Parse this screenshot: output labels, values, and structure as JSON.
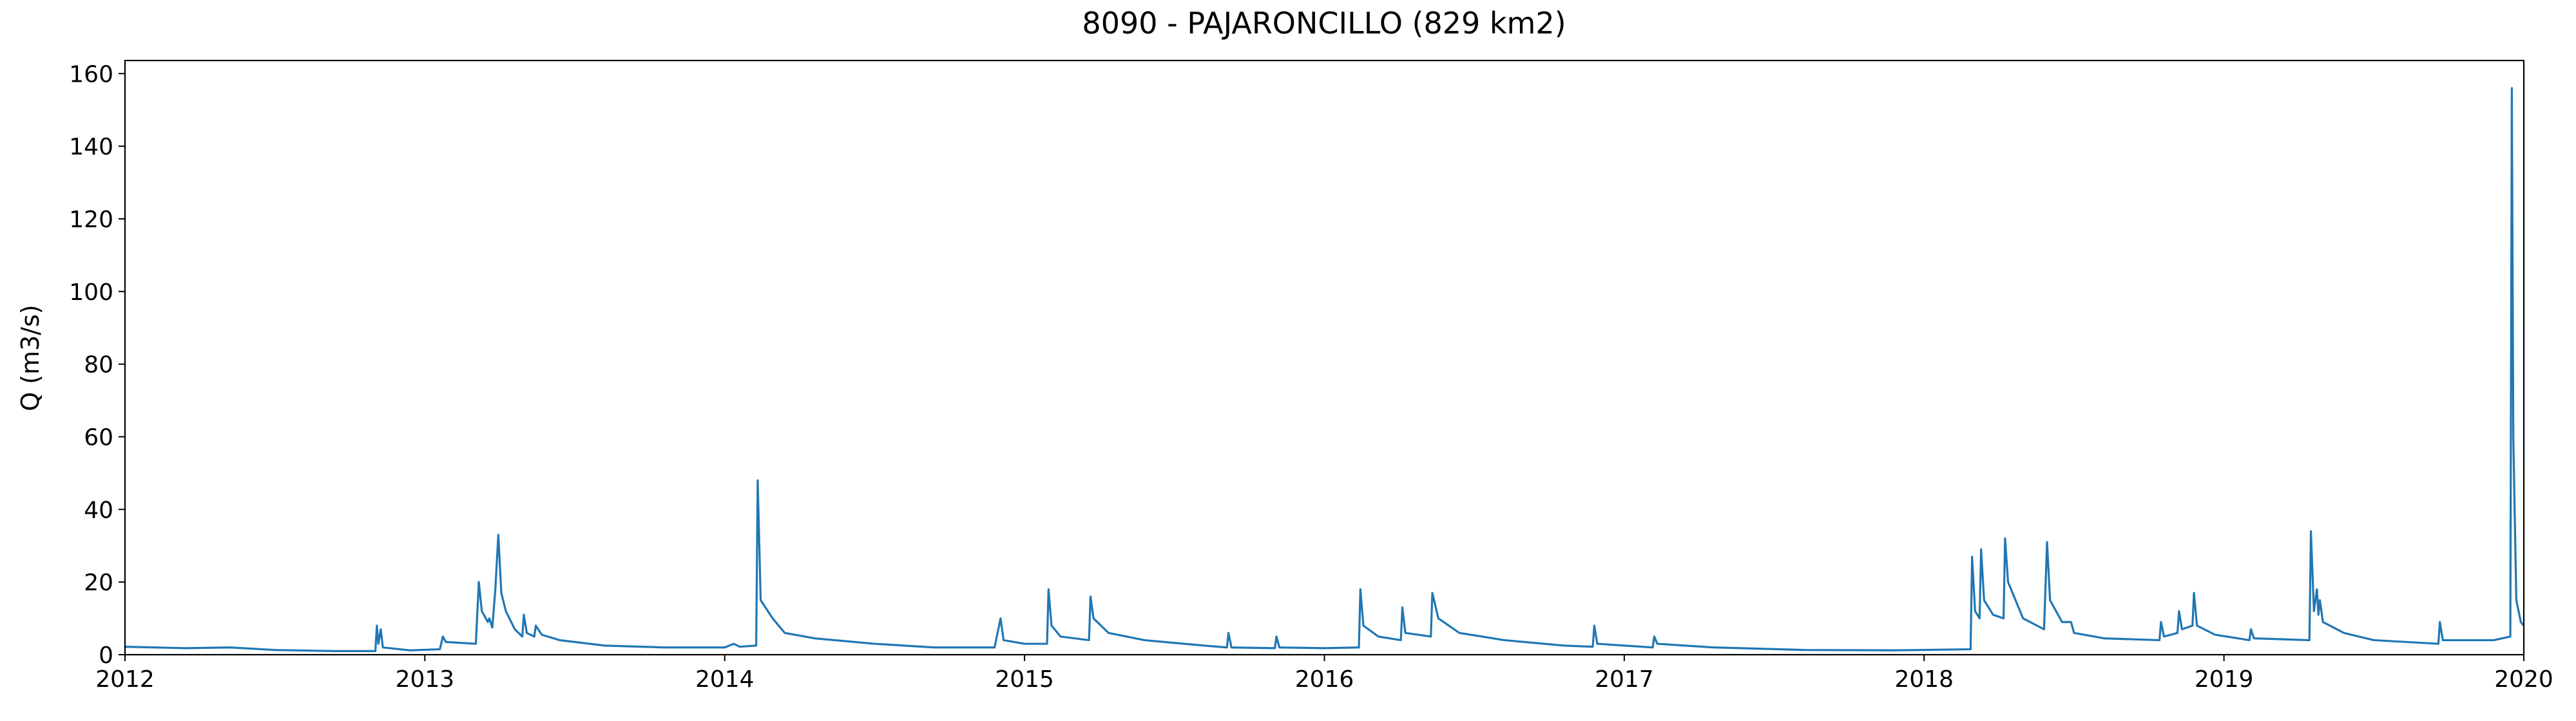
{
  "chart_data": {
    "type": "line",
    "title": "8090 - PAJARONCILLO (829 km2)",
    "y_label": "Q (m3/s)",
    "color": "#1f77b4",
    "xlim": [
      2012,
      2020
    ],
    "xticks": [
      2012,
      2013,
      2014,
      2015,
      2016,
      2017,
      2018,
      2019,
      2020
    ],
    "ylim": [
      0,
      163.6
    ],
    "yticks": [
      0,
      20,
      40,
      60,
      80,
      100,
      120,
      140,
      160
    ],
    "x": [
      2012.0,
      2012.1,
      2012.2,
      2012.35,
      2012.5,
      2012.7,
      2012.835,
      2012.84,
      2012.845,
      2012.853,
      2012.86,
      2012.95,
      2013.05,
      2013.06,
      2013.07,
      2013.17,
      2013.18,
      2013.19,
      2013.21,
      2013.215,
      2013.225,
      2013.235,
      2013.245,
      2013.255,
      2013.27,
      2013.3,
      2013.325,
      2013.33,
      2013.34,
      2013.365,
      2013.37,
      2013.39,
      2013.45,
      2013.6,
      2013.8,
      2014.0,
      2014.03,
      2014.05,
      2014.105,
      2014.11,
      2014.12,
      2014.16,
      2014.2,
      2014.3,
      2014.5,
      2014.7,
      2014.9,
      2014.92,
      2014.93,
      2015.0,
      2015.075,
      2015.08,
      2015.09,
      2015.12,
      2015.215,
      2015.22,
      2015.23,
      2015.28,
      2015.4,
      2015.6,
      2015.675,
      2015.68,
      2015.69,
      2015.835,
      2015.84,
      2015.85,
      2016.0,
      2016.115,
      2016.12,
      2016.13,
      2016.18,
      2016.255,
      2016.26,
      2016.27,
      2016.355,
      2016.36,
      2016.38,
      2016.45,
      2016.6,
      2016.8,
      2016.895,
      2016.9,
      2016.91,
      2017.095,
      2017.1,
      2017.11,
      2017.3,
      2017.6,
      2017.9,
      2018.155,
      2018.16,
      2018.17,
      2018.185,
      2018.19,
      2018.2,
      2018.23,
      2018.265,
      2018.27,
      2018.28,
      2018.33,
      2018.4,
      2018.41,
      2018.42,
      2018.46,
      2018.49,
      2018.5,
      2018.6,
      2018.785,
      2018.79,
      2018.8,
      2018.845,
      2018.85,
      2018.86,
      2018.895,
      2018.9,
      2018.91,
      2018.97,
      2019.085,
      2019.09,
      2019.1,
      2019.285,
      2019.29,
      2019.3,
      2019.31,
      2019.315,
      2019.32,
      2019.33,
      2019.4,
      2019.5,
      2019.715,
      2019.72,
      2019.73,
      2019.9,
      2019.955,
      2019.96,
      2019.965,
      2019.975,
      2019.99,
      2020.0
    ],
    "values": [
      2.2,
      2.0,
      1.8,
      2.0,
      1.3,
      1.0,
      1.0,
      8,
      3,
      7,
      2,
      1.2,
      1.5,
      5,
      3.5,
      3,
      20,
      12,
      9,
      10,
      7.5,
      18,
      33,
      17,
      12,
      7,
      5,
      11,
      6,
      5,
      8,
      5.5,
      4,
      2.5,
      2,
      2,
      3,
      2.2,
      2.5,
      48,
      15,
      10,
      6,
      4.5,
      3,
      2,
      2,
      10,
      4,
      3,
      3,
      18,
      8,
      5,
      4,
      16,
      10,
      6,
      4,
      2.5,
      2,
      6,
      2,
      1.8,
      5,
      2,
      1.8,
      2,
      18,
      8,
      5,
      4,
      13,
      6,
      5,
      17,
      10,
      6,
      4,
      2.5,
      2.2,
      8,
      3,
      2,
      5,
      3,
      2,
      1.3,
      1.2,
      1.5,
      27,
      12,
      10,
      29,
      15,
      11,
      10,
      32,
      20,
      10,
      7,
      31,
      15,
      9,
      9,
      6,
      4.5,
      4,
      9,
      5,
      6,
      12,
      7,
      8,
      17,
      8,
      5.5,
      4,
      7,
      4.5,
      4,
      34,
      12,
      18,
      11,
      15,
      9,
      6,
      4,
      3,
      9,
      4,
      4,
      5,
      156,
      60,
      15,
      9,
      8
    ]
  }
}
